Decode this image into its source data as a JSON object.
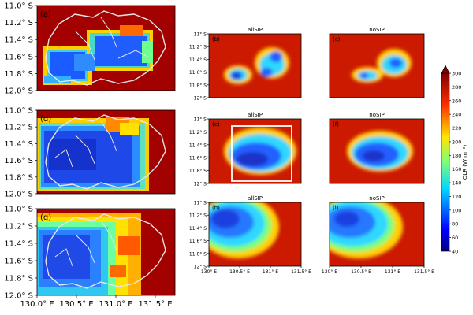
{
  "chart_data": {
    "type": "heatmap",
    "colorbar": {
      "label": "OLR (W m⁻²)",
      "ticks": [
        40,
        60,
        80,
        100,
        120,
        140,
        160,
        180,
        200,
        220,
        240,
        260,
        280,
        300
      ],
      "range": [
        40,
        300
      ],
      "colormap": "jet",
      "extend": "max"
    },
    "left_column": {
      "y_ticks": [
        "11.0° S",
        "11.2° S",
        "11.4° S",
        "11.6° S",
        "11.8° S",
        "12.0° S"
      ],
      "x_ticks": [
        "130.0° E",
        "130.5° E",
        "131.0° E",
        "131.5° E"
      ]
    },
    "right_columns": {
      "y_ticks": [
        "11° S",
        "11.2° S",
        "11.4° S",
        "11.6° S",
        "11.8° S",
        "12° S"
      ],
      "x_ticks": [
        "130° E",
        "130.5° E",
        "131° E",
        "131.5° E"
      ]
    },
    "panels": [
      {
        "letter": "(a)",
        "title": ""
      },
      {
        "letter": "(b)",
        "title": "allSIP"
      },
      {
        "letter": "(c)",
        "title": "noSIP"
      },
      {
        "letter": "(d)",
        "title": ""
      },
      {
        "letter": "(e)",
        "title": "allSIP"
      },
      {
        "letter": "(f)",
        "title": "noSIP"
      },
      {
        "letter": "(g)",
        "title": ""
      },
      {
        "letter": "(h)",
        "title": "allSIP"
      },
      {
        "letter": "(i)",
        "title": "noSIP"
      }
    ]
  }
}
